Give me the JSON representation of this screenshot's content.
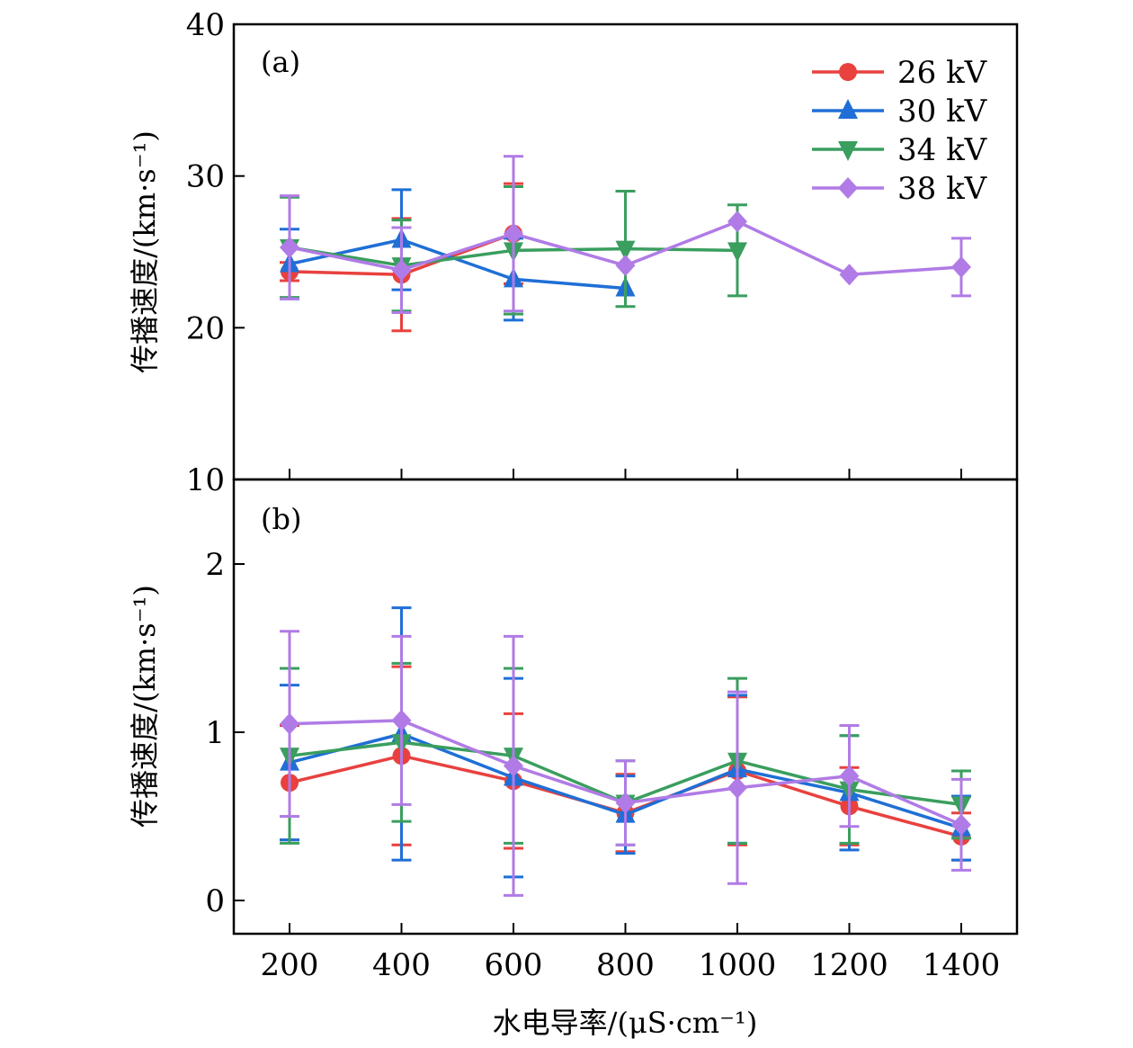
{
  "chart_data": [
    {
      "panel": "(a)",
      "type": "line",
      "x_ticks": [
        "200",
        "400",
        "600",
        "800",
        "1000",
        "1200",
        "1400"
      ],
      "ylim": [
        10,
        40
      ],
      "y_ticks": [
        "10",
        "20",
        "30",
        "40"
      ],
      "ylabel": "传播速度/(km·s⁻¹)",
      "legend_position": "top-right",
      "series": [
        {
          "name": "26 kV",
          "color": "#e8413e",
          "marker": "circle",
          "x": [
            200,
            400,
            600
          ],
          "y": [
            23.7,
            23.5,
            26.2
          ],
          "err": [
            0.6,
            3.7,
            3.3
          ]
        },
        {
          "name": "30 kV",
          "color": "#1f6fd6",
          "marker": "triangle-up",
          "x": [
            200,
            400,
            600,
            800
          ],
          "y": [
            24.2,
            25.8,
            23.2,
            22.6
          ],
          "err": [
            2.3,
            3.3,
            2.7,
            0
          ]
        },
        {
          "name": "34 kV",
          "color": "#3a9e5e",
          "marker": "triangle-down",
          "x": [
            200,
            400,
            600,
            800,
            1000
          ],
          "y": [
            25.3,
            24.1,
            25.1,
            25.2,
            25.1
          ],
          "err": [
            3.3,
            3.0,
            4.2,
            3.8,
            3.0
          ]
        },
        {
          "name": "38 kV",
          "color": "#b07be6",
          "marker": "diamond",
          "x": [
            200,
            400,
            600,
            800,
            1000,
            1200,
            1400
          ],
          "y": [
            25.3,
            23.8,
            26.2,
            24.1,
            27.0,
            23.5,
            24.0
          ],
          "err": [
            3.4,
            2.8,
            5.1,
            0,
            0,
            0,
            1.9
          ]
        }
      ]
    },
    {
      "panel": "(b)",
      "type": "line",
      "x_ticks": [
        "200",
        "400",
        "600",
        "800",
        "1000",
        "1200",
        "1400"
      ],
      "ylim": [
        -0.2,
        2.5
      ],
      "y_ticks": [
        "0",
        "1",
        "2"
      ],
      "ylabel": "传播速度/(km·s⁻¹)",
      "xlabel": "水电导率/(μS·cm⁻¹)",
      "series": [
        {
          "name": "26 kV",
          "color": "#e8413e",
          "marker": "circle",
          "x": [
            200,
            400,
            600,
            800,
            1000,
            1200,
            1400
          ],
          "y": [
            0.7,
            0.86,
            0.71,
            0.52,
            0.77,
            0.56,
            0.38
          ],
          "err": [
            0.34,
            0.53,
            0.4,
            0.23,
            0.44,
            0.23,
            0.14
          ]
        },
        {
          "name": "30 kV",
          "color": "#1f6fd6",
          "marker": "triangle-up",
          "x": [
            200,
            400,
            600,
            800,
            1000,
            1200,
            1400
          ],
          "y": [
            0.82,
            0.99,
            0.73,
            0.51,
            0.78,
            0.64,
            0.43
          ],
          "err": [
            0.46,
            0.75,
            0.59,
            0.23,
            0.44,
            0.34,
            0.19
          ]
        },
        {
          "name": "34 kV",
          "color": "#3a9e5e",
          "marker": "triangle-down",
          "x": [
            200,
            400,
            600,
            800,
            1000,
            1200,
            1400
          ],
          "y": [
            0.86,
            0.94,
            0.86,
            0.58,
            0.83,
            0.66,
            0.57
          ],
          "err": [
            0.52,
            0.47,
            0.52,
            0.25,
            0.49,
            0.32,
            0.2
          ]
        },
        {
          "name": "38 kV",
          "color": "#b07be6",
          "marker": "diamond",
          "x": [
            200,
            400,
            600,
            800,
            1000,
            1200,
            1400
          ],
          "y": [
            1.05,
            1.07,
            0.8,
            0.58,
            0.67,
            0.74,
            0.45
          ],
          "err": [
            0.55,
            0.5,
            0.77,
            0.25,
            0.57,
            0.3,
            0.27
          ]
        }
      ]
    }
  ]
}
